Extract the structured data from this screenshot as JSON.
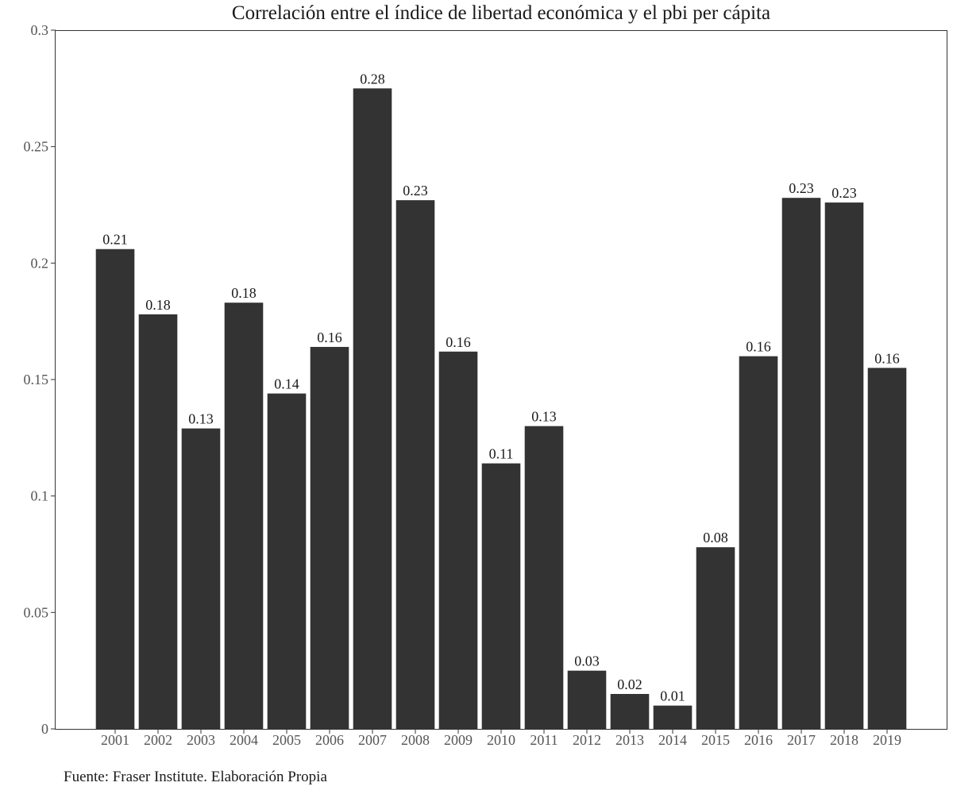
{
  "chart_data": {
    "type": "bar",
    "title": "Correlación entre el índice de libertad económica y el pbi per cápita",
    "xlabel": "",
    "ylabel": "",
    "categories": [
      "2001",
      "2002",
      "2003",
      "2004",
      "2005",
      "2006",
      "2007",
      "2008",
      "2009",
      "2010",
      "2011",
      "2012",
      "2013",
      "2014",
      "2015",
      "2016",
      "2017",
      "2018",
      "2019"
    ],
    "values": [
      0.206,
      0.178,
      0.129,
      0.183,
      0.144,
      0.164,
      0.275,
      0.227,
      0.162,
      0.114,
      0.13,
      0.025,
      0.015,
      0.01,
      0.078,
      0.16,
      0.228,
      0.226,
      0.155
    ],
    "data_labels": [
      "0.21",
      "0.18",
      "0.13",
      "0.18",
      "0.14",
      "0.16",
      "0.28",
      "0.23",
      "0.16",
      "0.11",
      "0.13",
      "0.03",
      "0.02",
      "0.01",
      "0.08",
      "0.16",
      "0.23",
      "0.23",
      "0.16"
    ],
    "ylim": [
      0,
      0.3
    ],
    "yticks": [
      0,
      0.05,
      0.1,
      0.15,
      0.2,
      0.25,
      0.3
    ],
    "ytick_labels": [
      "0",
      "0.05",
      "0.1",
      "0.15",
      "0.2",
      "0.25",
      "0.3"
    ],
    "bar_color": "#333333",
    "grid": false,
    "legend": "none"
  },
  "caption": "Fuente: Fraser Institute. Elaboración Propia"
}
